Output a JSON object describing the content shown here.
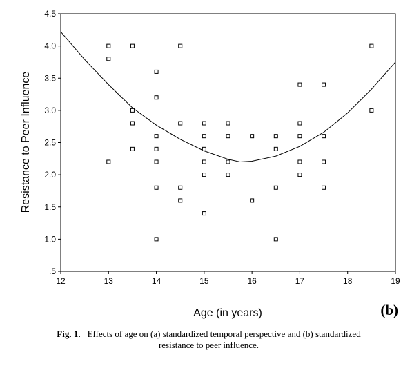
{
  "chart_data": {
    "type": "scatter",
    "xlabel": "Age (in years)",
    "ylabel": "Resistance to Peer Influence",
    "xlim": [
      12,
      19
    ],
    "ylim": [
      0.5,
      4.5
    ],
    "x_ticks": [
      {
        "value": 12,
        "label": "12"
      },
      {
        "value": 13,
        "label": "13"
      },
      {
        "value": 14,
        "label": "14"
      },
      {
        "value": 15,
        "label": "15"
      },
      {
        "value": 16,
        "label": "16"
      },
      {
        "value": 17,
        "label": "17"
      },
      {
        "value": 18,
        "label": "18"
      },
      {
        "value": 19,
        "label": "19"
      }
    ],
    "y_ticks": [
      {
        "value": 0.5,
        "label": ".5"
      },
      {
        "value": 1.0,
        "label": "1.0"
      },
      {
        "value": 1.5,
        "label": "1.5"
      },
      {
        "value": 2.0,
        "label": "2.0"
      },
      {
        "value": 2.5,
        "label": "2.5"
      },
      {
        "value": 3.0,
        "label": "3.0"
      },
      {
        "value": 3.5,
        "label": "3.5"
      },
      {
        "value": 4.0,
        "label": "4.0"
      },
      {
        "value": 4.5,
        "label": "4.5"
      }
    ],
    "grid": false,
    "points": [
      [
        13,
        4.0
      ],
      [
        13,
        3.8
      ],
      [
        13,
        2.2
      ],
      [
        13.5,
        4.0
      ],
      [
        13.5,
        3.0
      ],
      [
        13.5,
        2.8
      ],
      [
        13.5,
        2.4
      ],
      [
        14,
        3.6
      ],
      [
        14,
        3.2
      ],
      [
        14,
        2.6
      ],
      [
        14,
        2.4
      ],
      [
        14,
        2.2
      ],
      [
        14,
        1.8
      ],
      [
        14,
        1.0
      ],
      [
        14.5,
        4.0
      ],
      [
        14.5,
        2.8
      ],
      [
        14.5,
        1.8
      ],
      [
        14.5,
        1.6
      ],
      [
        15,
        2.8
      ],
      [
        15,
        2.6
      ],
      [
        15,
        2.4
      ],
      [
        15,
        2.2
      ],
      [
        15,
        2.0
      ],
      [
        15,
        1.4
      ],
      [
        15.5,
        2.8
      ],
      [
        15.5,
        2.6
      ],
      [
        15.5,
        2.2
      ],
      [
        15.5,
        2.0
      ],
      [
        16,
        2.6
      ],
      [
        16,
        1.6
      ],
      [
        16.5,
        2.6
      ],
      [
        16.5,
        2.4
      ],
      [
        16.5,
        1.8
      ],
      [
        16.5,
        1.0
      ],
      [
        17,
        3.4
      ],
      [
        17,
        2.8
      ],
      [
        17,
        2.6
      ],
      [
        17,
        2.2
      ],
      [
        17,
        2.0
      ],
      [
        17.5,
        3.4
      ],
      [
        17.5,
        2.6
      ],
      [
        17.5,
        2.2
      ],
      [
        17.5,
        1.8
      ],
      [
        18.5,
        4.0
      ],
      [
        18.5,
        3.0
      ]
    ],
    "fit_curve": {
      "type": "quadratic",
      "points": [
        [
          12.0,
          4.22
        ],
        [
          12.5,
          3.79
        ],
        [
          13.0,
          3.4
        ],
        [
          13.5,
          3.04
        ],
        [
          14.0,
          2.77
        ],
        [
          14.5,
          2.55
        ],
        [
          15.0,
          2.37
        ],
        [
          15.5,
          2.24
        ],
        [
          15.75,
          2.2
        ],
        [
          16.0,
          2.21
        ],
        [
          16.5,
          2.29
        ],
        [
          17.0,
          2.44
        ],
        [
          17.5,
          2.66
        ],
        [
          18.0,
          2.96
        ],
        [
          18.5,
          3.33
        ],
        [
          19.0,
          3.75
        ]
      ]
    },
    "panel_label": "(b)"
  },
  "caption": {
    "label": "Fig. 1.",
    "line1": "Effects of age on (a) standardized temporal perspective and (b) standardized",
    "line2": "resistance to peer influence."
  }
}
